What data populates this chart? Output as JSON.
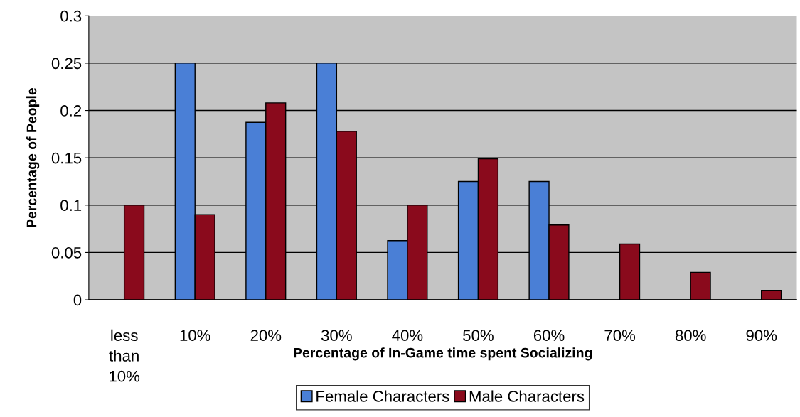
{
  "chart_data": {
    "type": "bar",
    "xlabel": "Percentage of In-Game time spent Socializing",
    "ylabel": "Percentage of People",
    "categories": [
      "less\nthan\n10%",
      "10%",
      "20%",
      "30%",
      "40%",
      "50%",
      "60%",
      "70%",
      "80%",
      "90%"
    ],
    "series": [
      {
        "name": "Female Characters",
        "color": "#4a7fd6",
        "values": [
          null,
          0.25,
          0.1875,
          0.25,
          0.0625,
          0.125,
          0.125,
          null,
          null,
          null
        ]
      },
      {
        "name": "Male Characters",
        "color": "#8a0a1c",
        "values": [
          0.1,
          0.09,
          0.208,
          0.178,
          0.1,
          0.149,
          0.079,
          0.059,
          0.029,
          0.01
        ]
      }
    ],
    "ylim": [
      0,
      0.3
    ],
    "yticks": [
      0,
      0.05,
      0.1,
      0.15,
      0.2,
      0.25,
      0.3
    ],
    "grid": "y",
    "legend": "bottom"
  }
}
